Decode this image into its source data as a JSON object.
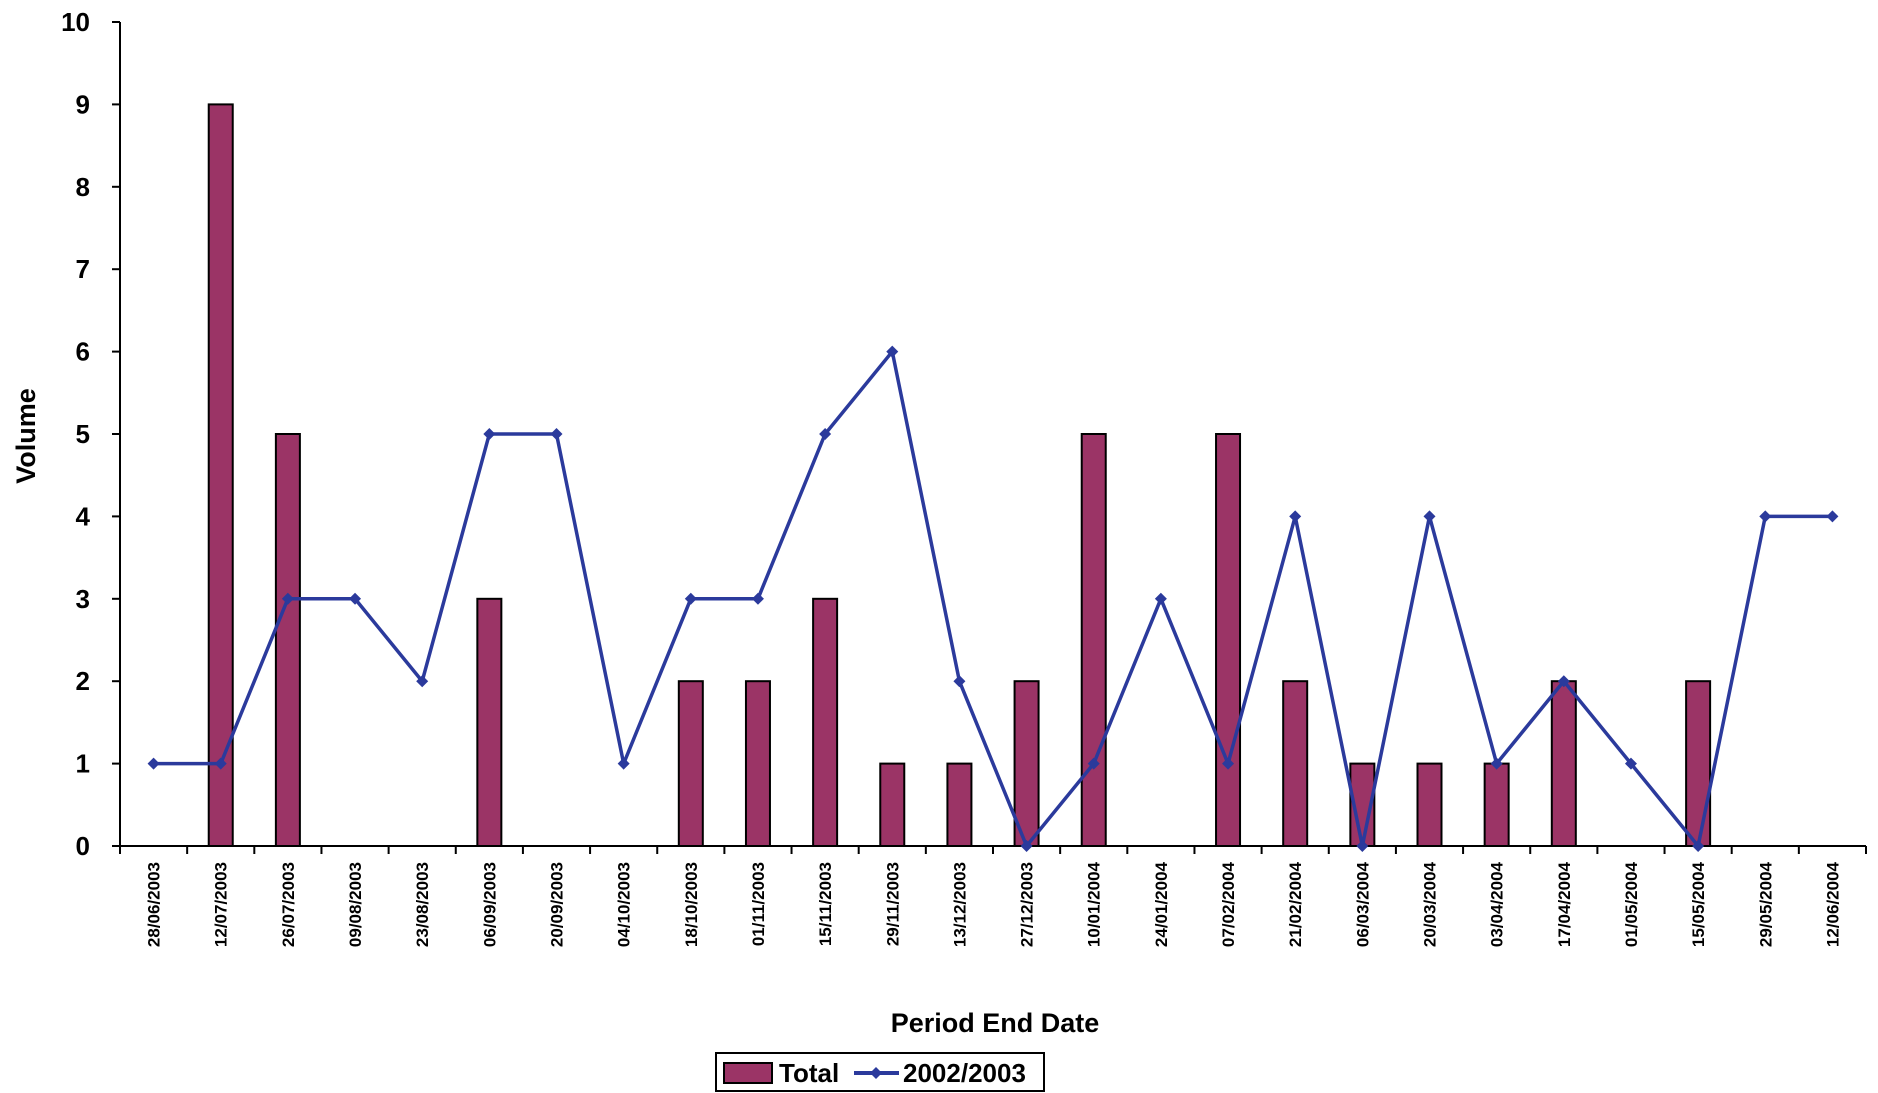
{
  "chart_data": {
    "type": "bar",
    "xlabel": "Period End Date",
    "ylabel": "Volume",
    "ylim": [
      0,
      10
    ],
    "yticks": [
      0,
      1,
      2,
      3,
      4,
      5,
      6,
      7,
      8,
      9,
      10
    ],
    "grid": false,
    "legend_position": "bottom",
    "categories": [
      "28/06/2003",
      "12/07/2003",
      "26/07/2003",
      "09/08/2003",
      "23/08/2003",
      "06/09/2003",
      "20/09/2003",
      "04/10/2003",
      "18/10/2003",
      "01/11/2003",
      "15/11/2003",
      "29/11/2003",
      "13/12/2003",
      "27/12/2003",
      "10/01/2004",
      "24/01/2004",
      "07/02/2004",
      "21/02/2004",
      "06/03/2004",
      "20/03/2004",
      "03/04/2004",
      "17/04/2004",
      "01/05/2004",
      "15/05/2004",
      "29/05/2004",
      "12/06/2004"
    ],
    "series": [
      {
        "name": "Total",
        "kind": "bar",
        "color": "#9b3466",
        "values": [
          0,
          9,
          5,
          0,
          0,
          3,
          0,
          0,
          2,
          2,
          3,
          1,
          1,
          2,
          5,
          0,
          5,
          2,
          1,
          1,
          1,
          2,
          0,
          2,
          0,
          0
        ]
      },
      {
        "name": "2002/2003",
        "kind": "line",
        "color": "#2b3a9c",
        "values": [
          1,
          1,
          3,
          3,
          2,
          5,
          5,
          1,
          3,
          3,
          5,
          6,
          2,
          0,
          1,
          3,
          1,
          4,
          0,
          4,
          1,
          2,
          1,
          0,
          4,
          4
        ]
      }
    ]
  }
}
